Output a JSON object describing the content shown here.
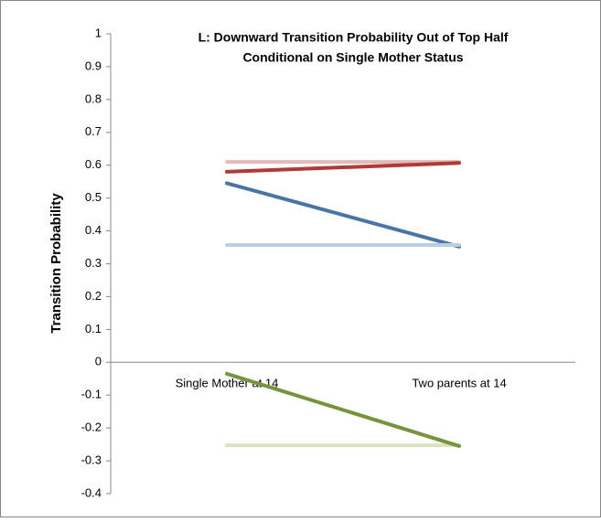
{
  "chart_data": {
    "type": "line",
    "title": [
      "L: Downward Transition Probability Out of Top Half",
      "Conditional on Single Mother Status"
    ],
    "y_label": "Transition Probability",
    "categories": [
      "Single Mother at 14",
      "Two parents at 14"
    ],
    "series": [
      {
        "color": "#e6b9b8",
        "values": [
          0.61,
          0.61
        ]
      },
      {
        "color": "#b03a36",
        "values": [
          0.58,
          0.607
        ]
      },
      {
        "color": "#4a74a8",
        "values": [
          0.545,
          0.352
        ]
      },
      {
        "color": "#b9cde5",
        "values": [
          0.357,
          0.357
        ]
      },
      {
        "color": "#d7e4bd",
        "values": [
          -0.253,
          -0.253
        ]
      },
      {
        "color": "#77933c",
        "values": [
          -0.035,
          -0.255
        ]
      }
    ],
    "ylim": [
      -0.4,
      1
    ],
    "yticks": [
      -0.4,
      -0.3,
      -0.2,
      -0.1,
      0,
      0.1,
      0.2,
      0.3,
      0.4,
      0.5,
      0.6,
      0.7,
      0.8,
      0.9,
      1
    ]
  }
}
